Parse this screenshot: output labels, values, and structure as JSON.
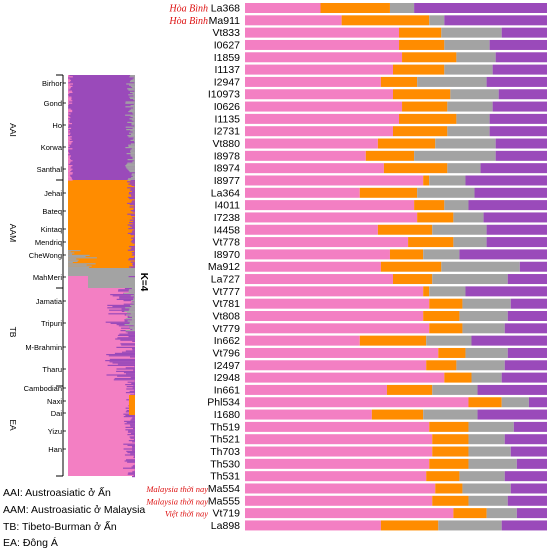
{
  "colors": {
    "pink": "#f37fc3",
    "orange": "#ff8c00",
    "gray": "#a3a3a3",
    "purple": "#9a4aba"
  },
  "k_label": "K=4",
  "left_panel": {
    "groups": [
      {
        "abbr": "AAI",
        "populations": [
          "Birhor",
          "Gond",
          "Ho",
          "Korwa",
          "Santhal"
        ]
      },
      {
        "abbr": "AAM",
        "populations": [
          "Jehai",
          "Bateq",
          "Kintaq",
          "Mendriq",
          "CheWong",
          "MahMeri"
        ]
      },
      {
        "abbr": "TB",
        "populations": [
          "Jamatia",
          "Tripuri",
          "M-Brahmin",
          "Tharu"
        ]
      },
      {
        "abbr": "EA",
        "populations": [
          "Cambodian",
          "Naxi",
          "Dai",
          "Yizu",
          "Han"
        ]
      }
    ]
  },
  "legend": [
    "AAI: Austroasiatic ở Ấn",
    "AAM: Austroasiatic ở Malaysia",
    "TB: Tibeto-Burman ở Ấn",
    "EA: Đông Á"
  ],
  "chart_data": {
    "type": "bar",
    "stacked": true,
    "horizontal": true,
    "title": "",
    "xlim": [
      0,
      1
    ],
    "series_names": [],
    "categories": [
      "La368",
      "Ma911",
      "Vt833",
      "I0627",
      "I1859",
      "I1137",
      "I2947",
      "I10973",
      "I0626",
      "I1135",
      "I2731",
      "Vt880",
      "I8978",
      "I8974",
      "I8977",
      "La364",
      "I4011",
      "I7238",
      "I4458",
      "Vt778",
      "I8970",
      "Ma912",
      "La727",
      "Vt777",
      "Vt781",
      "Vt808",
      "Vt779",
      "In662",
      "Vt796",
      "I2497",
      "I2948",
      "In661",
      "Phl534",
      "I1680",
      "Th519",
      "Th521",
      "Th703",
      "Th530",
      "Th531",
      "Ma554",
      "Ma555",
      "Vt719",
      "La898"
    ],
    "row_tags": {
      "La368": "Hòa Bình",
      "Ma911": "Hòa Bình",
      "Ma554": "Malaysia thời nay",
      "Ma555": "Malaysia thời nay",
      "Vt719": "Việt thời nay"
    },
    "values": [
      [
        0.25,
        0.23,
        0.08,
        0.44
      ],
      [
        0.32,
        0.29,
        0.05,
        0.34
      ],
      [
        0.51,
        0.14,
        0.2,
        0.15
      ],
      [
        0.51,
        0.15,
        0.15,
        0.19
      ],
      [
        0.52,
        0.18,
        0.13,
        0.17
      ],
      [
        0.49,
        0.17,
        0.16,
        0.18
      ],
      [
        0.45,
        0.12,
        0.23,
        0.2
      ],
      [
        0.49,
        0.19,
        0.16,
        0.16
      ],
      [
        0.52,
        0.15,
        0.15,
        0.18
      ],
      [
        0.51,
        0.19,
        0.11,
        0.19
      ],
      [
        0.49,
        0.18,
        0.14,
        0.19
      ],
      [
        0.44,
        0.19,
        0.2,
        0.17
      ],
      [
        0.4,
        0.16,
        0.27,
        0.17
      ],
      [
        0.46,
        0.21,
        0.11,
        0.22
      ],
      [
        0.59,
        0.02,
        0.12,
        0.27
      ],
      [
        0.38,
        0.19,
        0.19,
        0.24
      ],
      [
        0.56,
        0.1,
        0.08,
        0.26
      ],
      [
        0.57,
        0.12,
        0.1,
        0.21
      ],
      [
        0.44,
        0.18,
        0.18,
        0.2
      ],
      [
        0.54,
        0.15,
        0.11,
        0.2
      ],
      [
        0.48,
        0.11,
        0.12,
        0.29
      ],
      [
        0.45,
        0.2,
        0.26,
        0.09
      ],
      [
        0.49,
        0.13,
        0.25,
        0.13
      ],
      [
        0.59,
        0.02,
        0.12,
        0.27
      ],
      [
        0.61,
        0.11,
        0.16,
        0.12
      ],
      [
        0.59,
        0.12,
        0.16,
        0.13
      ],
      [
        0.61,
        0.11,
        0.14,
        0.14
      ],
      [
        0.38,
        0.22,
        0.15,
        0.25
      ],
      [
        0.64,
        0.09,
        0.14,
        0.13
      ],
      [
        0.6,
        0.1,
        0.16,
        0.14
      ],
      [
        0.66,
        0.09,
        0.1,
        0.15
      ],
      [
        0.47,
        0.15,
        0.15,
        0.23
      ],
      [
        0.74,
        0.11,
        0.09,
        0.06
      ],
      [
        0.42,
        0.17,
        0.18,
        0.23
      ],
      [
        0.61,
        0.13,
        0.15,
        0.11
      ],
      [
        0.62,
        0.12,
        0.12,
        0.14
      ],
      [
        0.62,
        0.12,
        0.14,
        0.12
      ],
      [
        0.61,
        0.13,
        0.16,
        0.1
      ],
      [
        0.6,
        0.11,
        0.15,
        0.14
      ],
      [
        0.63,
        0.09,
        0.16,
        0.12
      ],
      [
        0.62,
        0.12,
        0.13,
        0.13
      ],
      [
        0.69,
        0.11,
        0.1,
        0.1
      ],
      [
        0.45,
        0.19,
        0.21,
        0.15
      ]
    ]
  }
}
